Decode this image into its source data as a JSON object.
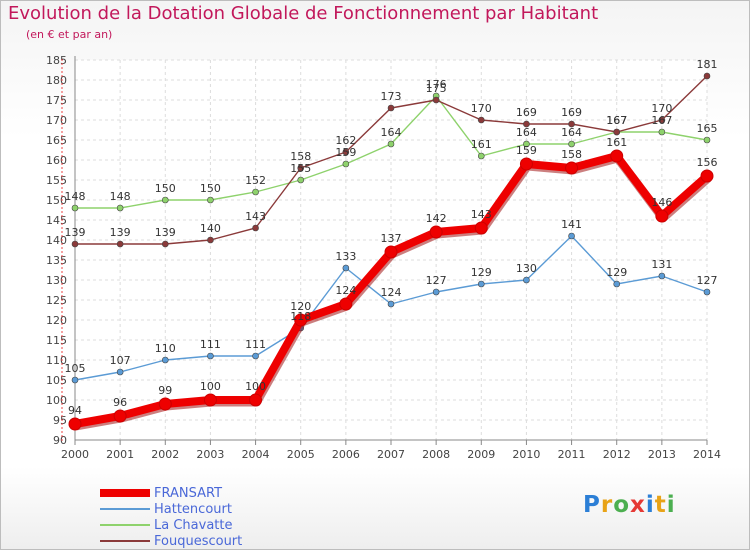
{
  "title": "Evolution de la Dotation Globale de Fonctionnement par Habitant",
  "subtitle": "(en € et par an)",
  "logo": {
    "text": "Proxiti",
    "colors": [
      "#2c7fd6",
      "#e8a317",
      "#4caf50",
      "#e53935",
      "#2c7fd6",
      "#e8a317",
      "#4caf50"
    ]
  },
  "chart_data": {
    "type": "line",
    "x": [
      "2000",
      "2001",
      "2002",
      "2003",
      "2004",
      "2005",
      "2006",
      "2007",
      "2008",
      "2009",
      "2010",
      "2011",
      "2012",
      "2013",
      "2014"
    ],
    "ylim": [
      90,
      185
    ],
    "yticks": [
      90,
      95,
      100,
      105,
      110,
      115,
      120,
      125,
      130,
      135,
      140,
      145,
      150,
      155,
      160,
      165,
      170,
      175,
      180,
      185
    ],
    "grid": true,
    "legend": "bottom-left",
    "series": [
      {
        "name": "Hattencourt",
        "color": "#5b9bd5",
        "values": [
          105,
          107,
          110,
          111,
          111,
          118,
          133,
          124,
          127,
          129,
          130,
          141,
          129,
          131,
          127
        ]
      },
      {
        "name": "La Chavatte",
        "color": "#8ed26c",
        "values": [
          148,
          148,
          150,
          150,
          152,
          155,
          159,
          164,
          176,
          161,
          164,
          164,
          167,
          167,
          165
        ]
      },
      {
        "name": "Fouquescourt",
        "color": "#8b3a3a",
        "values": [
          139,
          139,
          139,
          140,
          143,
          158,
          162,
          173,
          175,
          170,
          169,
          169,
          167,
          170,
          181
        ]
      },
      {
        "name": "FRANSART",
        "color": "#ee0000",
        "values": [
          94,
          96,
          99,
          100,
          100,
          120,
          124,
          137,
          142,
          143,
          159,
          158,
          161,
          146,
          156
        ]
      }
    ],
    "legend_order": [
      "FRANSART",
      "Hattencourt",
      "La Chavatte",
      "Fouquescourt"
    ]
  }
}
